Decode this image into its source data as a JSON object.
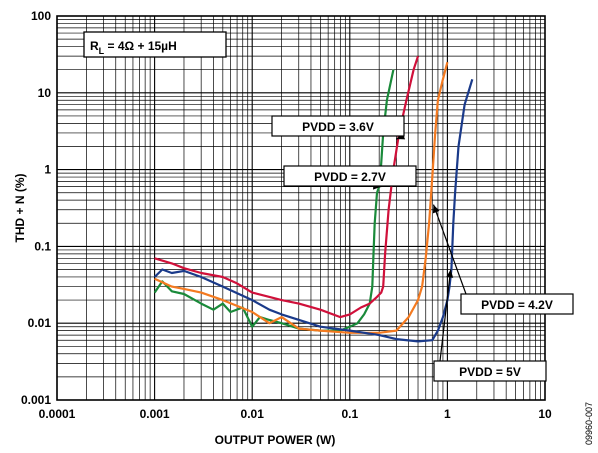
{
  "chart_data": {
    "type": "line",
    "x_scale": "log",
    "y_scale": "log",
    "xlim": [
      0.0001,
      10
    ],
    "ylim": [
      0.001,
      100
    ],
    "xlabel": "OUTPUT POWER (W)",
    "ylabel": "THD + N (%)",
    "grid": true,
    "x_ticks": [
      "0.0001",
      "0.001",
      "0.01",
      "0.1",
      "1",
      "10"
    ],
    "y_ticks": [
      "100",
      "10",
      "1",
      "0.1",
      "0.01",
      "0.001"
    ],
    "condition": {
      "prefix": "R",
      "subscript": "L",
      "suffix": " = 4Ω + 15µH"
    },
    "figure_id": "09960-007",
    "series": [
      {
        "name": "PVDD = 2.7V",
        "color": "#1a8a3a",
        "points": [
          [
            0.001,
            0.025
          ],
          [
            0.0012,
            0.035
          ],
          [
            0.0015,
            0.026
          ],
          [
            0.002,
            0.024
          ],
          [
            0.003,
            0.018
          ],
          [
            0.004,
            0.015
          ],
          [
            0.005,
            0.018
          ],
          [
            0.006,
            0.014
          ],
          [
            0.008,
            0.016
          ],
          [
            0.01,
            0.009
          ],
          [
            0.012,
            0.012
          ],
          [
            0.015,
            0.011
          ],
          [
            0.02,
            0.01
          ],
          [
            0.03,
            0.0085
          ],
          [
            0.05,
            0.008
          ],
          [
            0.08,
            0.008
          ],
          [
            0.1,
            0.009
          ],
          [
            0.12,
            0.01
          ],
          [
            0.14,
            0.013
          ],
          [
            0.16,
            0.018
          ],
          [
            0.17,
            0.03
          ],
          [
            0.175,
            0.08
          ],
          [
            0.18,
            0.2
          ],
          [
            0.19,
            0.5
          ],
          [
            0.2,
            0.6
          ],
          [
            0.21,
            1.2
          ],
          [
            0.22,
            3
          ],
          [
            0.24,
            8
          ],
          [
            0.28,
            20
          ]
        ]
      },
      {
        "name": "PVDD = 3.6V",
        "color": "#d0103a",
        "points": [
          [
            0.001,
            0.07
          ],
          [
            0.0015,
            0.06
          ],
          [
            0.002,
            0.052
          ],
          [
            0.003,
            0.045
          ],
          [
            0.005,
            0.04
          ],
          [
            0.007,
            0.033
          ],
          [
            0.01,
            0.025
          ],
          [
            0.015,
            0.022
          ],
          [
            0.02,
            0.02
          ],
          [
            0.03,
            0.018
          ],
          [
            0.05,
            0.015
          ],
          [
            0.08,
            0.012
          ],
          [
            0.1,
            0.013
          ],
          [
            0.13,
            0.016
          ],
          [
            0.16,
            0.018
          ],
          [
            0.19,
            0.022
          ],
          [
            0.21,
            0.025
          ],
          [
            0.22,
            0.03
          ],
          [
            0.23,
            0.08
          ],
          [
            0.25,
            0.3
          ],
          [
            0.28,
            1
          ],
          [
            0.32,
            3
          ],
          [
            0.38,
            8
          ],
          [
            0.45,
            20
          ],
          [
            0.5,
            30
          ]
        ]
      },
      {
        "name": "PVDD = 4.2V",
        "color": "#f47a20",
        "points": [
          [
            0.001,
            0.038
          ],
          [
            0.0015,
            0.03
          ],
          [
            0.002,
            0.028
          ],
          [
            0.003,
            0.025
          ],
          [
            0.005,
            0.02
          ],
          [
            0.01,
            0.014
          ],
          [
            0.015,
            0.01
          ],
          [
            0.02,
            0.012
          ],
          [
            0.03,
            0.0085
          ],
          [
            0.05,
            0.008
          ],
          [
            0.1,
            0.0075
          ],
          [
            0.15,
            0.0075
          ],
          [
            0.2,
            0.0075
          ],
          [
            0.3,
            0.008
          ],
          [
            0.4,
            0.012
          ],
          [
            0.5,
            0.02
          ],
          [
            0.55,
            0.03
          ],
          [
            0.6,
            0.07
          ],
          [
            0.65,
            0.2
          ],
          [
            0.7,
            0.8
          ],
          [
            0.75,
            3
          ],
          [
            0.8,
            8
          ],
          [
            0.9,
            15
          ],
          [
            1.0,
            25
          ]
        ]
      },
      {
        "name": "PVDD = 5V",
        "color": "#1a3a8a",
        "points": [
          [
            0.001,
            0.04
          ],
          [
            0.0012,
            0.05
          ],
          [
            0.0015,
            0.045
          ],
          [
            0.002,
            0.048
          ],
          [
            0.003,
            0.04
          ],
          [
            0.005,
            0.03
          ],
          [
            0.01,
            0.02
          ],
          [
            0.015,
            0.015
          ],
          [
            0.02,
            0.013
          ],
          [
            0.05,
            0.009
          ],
          [
            0.1,
            0.008
          ],
          [
            0.2,
            0.007
          ],
          [
            0.3,
            0.0062
          ],
          [
            0.5,
            0.0058
          ],
          [
            0.7,
            0.006
          ],
          [
            0.8,
            0.008
          ],
          [
            0.9,
            0.012
          ],
          [
            1.0,
            0.02
          ],
          [
            1.05,
            0.03
          ],
          [
            1.1,
            0.05
          ],
          [
            1.15,
            0.2
          ],
          [
            1.2,
            0.5
          ],
          [
            1.3,
            2
          ],
          [
            1.5,
            7
          ],
          [
            1.8,
            15
          ]
        ]
      }
    ]
  }
}
